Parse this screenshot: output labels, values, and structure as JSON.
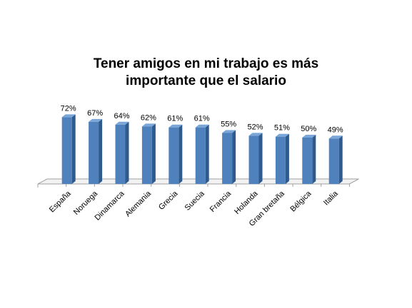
{
  "chart_data": {
    "type": "bar",
    "title": "Tener amigos en mi trabajo es más importante que el salario",
    "title_lines": [
      "Tener amigos en mi trabajo es más",
      "importante que el salario"
    ],
    "categories": [
      "España",
      "Noruega",
      "Dinamarca",
      "Alemania",
      "Grecia",
      "Suecia",
      "Francia",
      "Holanda",
      "Gran bretaña",
      "Bélgica",
      "Italia"
    ],
    "values": [
      72,
      67,
      64,
      62,
      61,
      61,
      55,
      52,
      51,
      50,
      49
    ],
    "data_labels": [
      "72%",
      "67%",
      "64%",
      "62%",
      "61%",
      "61%",
      "55%",
      "52%",
      "51%",
      "50%",
      "49%"
    ],
    "xlabel": "",
    "ylabel": "",
    "ylim": [
      0,
      100
    ],
    "grid": false,
    "legend": "none",
    "style": "3d-column",
    "colors": {
      "bar_front": "#4f81bd",
      "bar_side": "#2e5a8e",
      "bar_top": "#7aa6d8",
      "axis": "#a0a0a0",
      "floor": "#d9d9d9"
    }
  }
}
